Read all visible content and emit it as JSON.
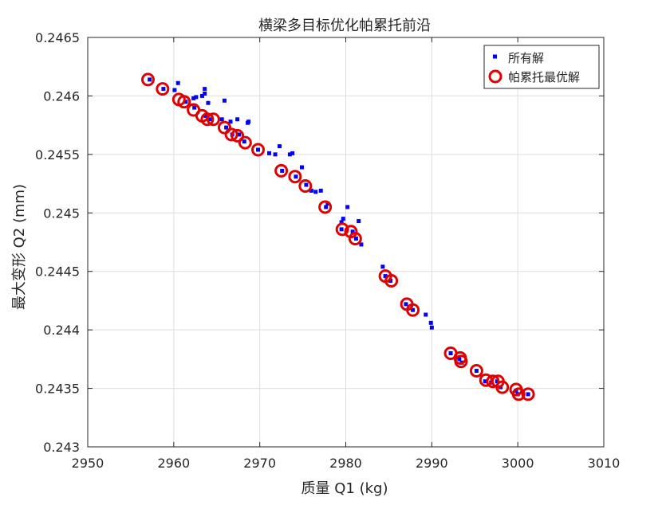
{
  "chart_data": {
    "type": "scatter",
    "title": "横梁多目标优化帕累托前沿",
    "xlabel": "质量 Q1 (kg)",
    "ylabel": "最大变形 Q2 (mm)",
    "xlim": [
      2950,
      3010
    ],
    "ylim": [
      0.243,
      0.2465
    ],
    "x_ticks": [
      "2950",
      "2960",
      "2970",
      "2980",
      "2990",
      "3000",
      "3010"
    ],
    "y_ticks": [
      "0.243",
      "0.2435",
      "0.244",
      "0.2445",
      "0.245",
      "0.2455",
      "0.246",
      "0.2465"
    ],
    "grid": true,
    "legend_position": "top-right",
    "series": [
      {
        "name": "所有解",
        "marker": "square",
        "color": "#0000ff",
        "points": [
          [
            2957.2,
            0.24614
          ],
          [
            2958.8,
            0.24606
          ],
          [
            2960.1,
            0.24605
          ],
          [
            2960.5,
            0.24611
          ],
          [
            2961.4,
            0.24595
          ],
          [
            2962.3,
            0.24598
          ],
          [
            2962.6,
            0.24599
          ],
          [
            2963.3,
            0.246
          ],
          [
            2963.6,
            0.24606
          ],
          [
            2963.6,
            0.24602
          ],
          [
            2964.0,
            0.24594
          ],
          [
            2962.4,
            0.2459
          ],
          [
            2963.7,
            0.24583
          ],
          [
            2964.3,
            0.2458
          ],
          [
            2965.6,
            0.2458
          ],
          [
            2965.9,
            0.24596
          ],
          [
            2966.6,
            0.24578
          ],
          [
            2967.4,
            0.2458
          ],
          [
            2968.6,
            0.24577
          ],
          [
            2968.7,
            0.24578
          ],
          [
            2966.1,
            0.24573
          ],
          [
            2966.8,
            0.24567
          ],
          [
            2967.6,
            0.24567
          ],
          [
            2968.2,
            0.24561
          ],
          [
            2969.8,
            0.24554
          ],
          [
            2971.1,
            0.24551
          ],
          [
            2971.8,
            0.2455
          ],
          [
            2972.3,
            0.24557
          ],
          [
            2973.5,
            0.2455
          ],
          [
            2973.8,
            0.24551
          ],
          [
            2974.9,
            0.24539
          ],
          [
            2972.6,
            0.24536
          ],
          [
            2974.2,
            0.24531
          ],
          [
            2975.4,
            0.24524
          ],
          [
            2976.0,
            0.24519
          ],
          [
            2976.5,
            0.24518
          ],
          [
            2977.1,
            0.24519
          ],
          [
            2977.7,
            0.24505
          ],
          [
            2977.9,
            0.24508
          ],
          [
            2979.5,
            0.24492
          ],
          [
            2979.7,
            0.24495
          ],
          [
            2980.2,
            0.24505
          ],
          [
            2979.5,
            0.24486
          ],
          [
            2980.8,
            0.24484
          ],
          [
            2981.2,
            0.24478
          ],
          [
            2981.5,
            0.24493
          ],
          [
            2981.8,
            0.24473
          ],
          [
            2984.3,
            0.24454
          ],
          [
            2984.6,
            0.24446
          ],
          [
            2985.2,
            0.24442
          ],
          [
            2987.0,
            0.24422
          ],
          [
            2987.8,
            0.24417
          ],
          [
            2989.3,
            0.24413
          ],
          [
            2989.9,
            0.24406
          ],
          [
            2990.0,
            0.24402
          ],
          [
            2992.2,
            0.2438
          ],
          [
            2993.2,
            0.24375
          ],
          [
            2993.5,
            0.24372
          ],
          [
            2995.2,
            0.24365
          ],
          [
            2996.2,
            0.24356
          ],
          [
            2996.9,
            0.24355
          ],
          [
            2997.6,
            0.24356
          ],
          [
            2998.0,
            0.24351
          ],
          [
            2999.8,
            0.24348
          ],
          [
            3000.0,
            0.24345
          ],
          [
            3001.2,
            0.24345
          ]
        ]
      },
      {
        "name": "帕累托最优解",
        "marker": "circle",
        "color": "#e00000",
        "points": [
          [
            2957.0,
            0.24614
          ],
          [
            2958.7,
            0.24606
          ],
          [
            2960.6,
            0.24597
          ],
          [
            2961.2,
            0.24595
          ],
          [
            2962.3,
            0.24588
          ],
          [
            2963.3,
            0.24583
          ],
          [
            2963.9,
            0.2458
          ],
          [
            2964.6,
            0.2458
          ],
          [
            2965.9,
            0.24573
          ],
          [
            2966.7,
            0.24567
          ],
          [
            2967.4,
            0.24566
          ],
          [
            2968.3,
            0.2456
          ],
          [
            2969.8,
            0.24554
          ],
          [
            2972.5,
            0.24536
          ],
          [
            2974.1,
            0.24531
          ],
          [
            2975.3,
            0.24523
          ],
          [
            2977.6,
            0.24505
          ],
          [
            2979.6,
            0.24486
          ],
          [
            2980.6,
            0.24484
          ],
          [
            2981.1,
            0.24478
          ],
          [
            2984.6,
            0.24446
          ],
          [
            2985.3,
            0.24442
          ],
          [
            2987.1,
            0.24422
          ],
          [
            2987.8,
            0.24417
          ],
          [
            2992.2,
            0.2438
          ],
          [
            2993.3,
            0.24376
          ],
          [
            2993.4,
            0.24373
          ],
          [
            2995.2,
            0.24365
          ],
          [
            2996.3,
            0.24357
          ],
          [
            2997.1,
            0.24356
          ],
          [
            2997.7,
            0.24356
          ],
          [
            2998.2,
            0.24351
          ],
          [
            2999.8,
            0.24349
          ],
          [
            3000.1,
            0.24345
          ],
          [
            3001.2,
            0.24345
          ]
        ]
      }
    ]
  }
}
